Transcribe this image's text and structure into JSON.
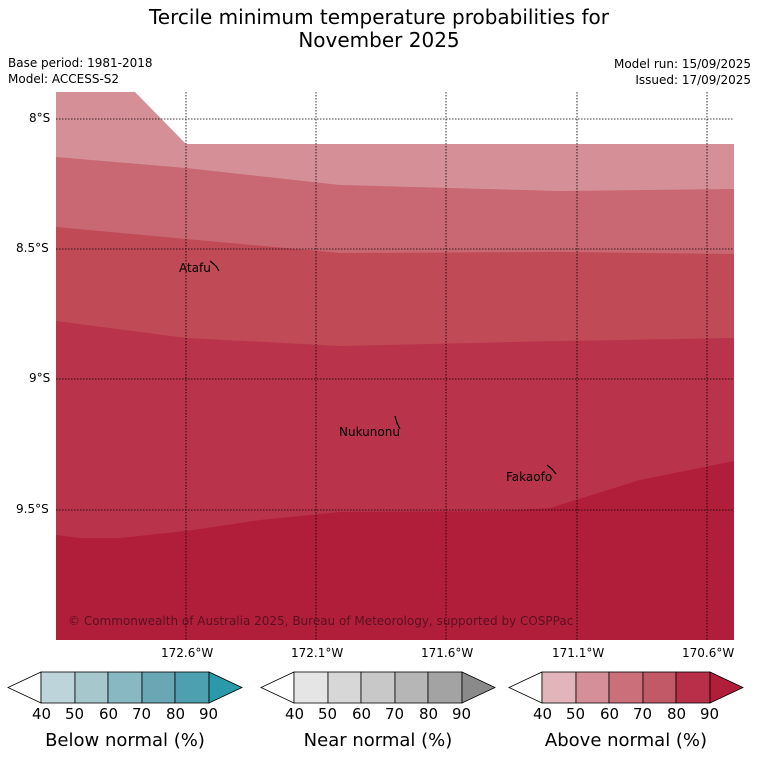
{
  "header": {
    "title_line1": "Tercile minimum temperature probabilities for",
    "title_line2": "November 2025",
    "base_period": "Base period: 1981-2018",
    "model": "Model: ACCESS-S2",
    "model_run": "Model run: 15/09/2025",
    "issued": "Issued: 17/09/2025"
  },
  "map": {
    "copyright": "© Commonwealth of Australia 2025, Bureau of Meteorology, supported by COSPPac",
    "places": [
      {
        "name": "Atafu"
      },
      {
        "name": "Nukunonu"
      },
      {
        "name": "Fakaofo"
      }
    ]
  },
  "chart_data": {
    "type": "heatmap",
    "title": "Tercile minimum temperature probabilities for November 2025",
    "lat_ticks": [
      "8°S",
      "8.5°S",
      "9°S",
      "9.5°S"
    ],
    "lon_ticks": [
      "172.6°W",
      "172.1°W",
      "171.6°W",
      "171.1°W",
      "170.6°W"
    ],
    "bands_above_normal_percent": [
      {
        "level": "40-50",
        "color": "#d59097"
      },
      {
        "level": "50-60",
        "color": "#c96872"
      },
      {
        "level": "60-70",
        "color": "#c04a56"
      },
      {
        "level": "70-80",
        "color": "#b9334a"
      },
      {
        "level": ">80",
        "color": "#b11e3a"
      }
    ],
    "colorbars": [
      {
        "title": "Below normal (%)",
        "ticks": [
          "40",
          "50",
          "60",
          "70",
          "80",
          "90"
        ],
        "colors": [
          "#ffffff",
          "#bdd5da",
          "#a6c8cd",
          "#88b8c1",
          "#69a7b4",
          "#4ca0b0",
          "#2a9aa8"
        ]
      },
      {
        "title": "Near normal (%)",
        "ticks": [
          "40",
          "50",
          "60",
          "70",
          "80",
          "90"
        ],
        "colors": [
          "#ffffff",
          "#e5e5e5",
          "#d7d7d7",
          "#c8c8c8",
          "#b6b6b6",
          "#a3a3a3",
          "#8a8a8a"
        ]
      },
      {
        "title": "Above normal (%)",
        "ticks": [
          "40",
          "50",
          "60",
          "70",
          "80",
          "90"
        ],
        "colors": [
          "#ffffff",
          "#e2b5bb",
          "#d48f98",
          "#cb6f7b",
          "#c25966",
          "#b82f4a",
          "#b11e3a"
        ]
      }
    ]
  }
}
